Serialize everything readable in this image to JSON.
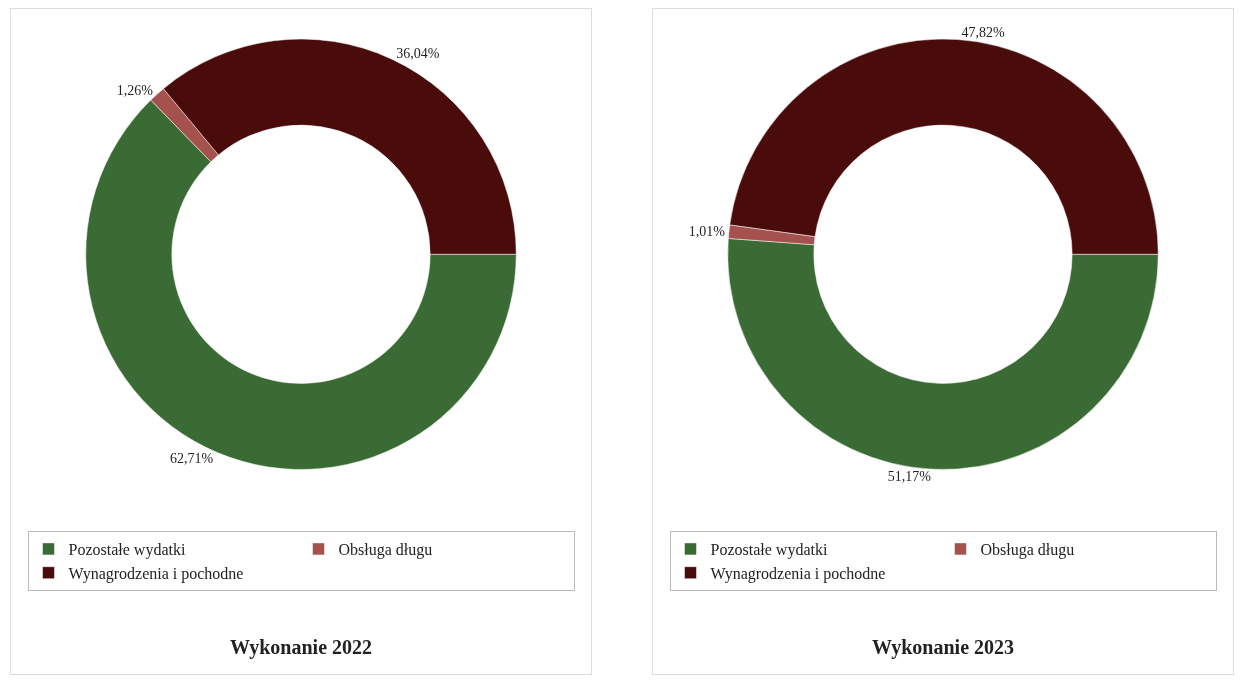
{
  "chart_data": [
    {
      "type": "donut",
      "title": "Wykonanie 2022",
      "categories": [
        "Pozostałe wydatki",
        "Obsługa długu",
        "Wynagrodzenia i pochodne"
      ],
      "values": [
        62.71,
        1.26,
        36.04
      ],
      "value_labels": [
        "62,71%",
        "1,26%",
        "36,04%"
      ],
      "colors": [
        "#3b6b35",
        "#a5524f",
        "#4a0b0b"
      ],
      "legend": "bottom"
    },
    {
      "type": "donut",
      "title": "Wykonanie 2023",
      "categories": [
        "Pozostałe wydatki",
        "Obsługa długu",
        "Wynagrodzenia i pochodne"
      ],
      "values": [
        51.17,
        1.01,
        47.82
      ],
      "value_labels": [
        "51,17%",
        "1,01%",
        "47,82%"
      ],
      "colors": [
        "#3b6b35",
        "#a5524f",
        "#4a0b0b"
      ],
      "legend": "bottom"
    }
  ]
}
